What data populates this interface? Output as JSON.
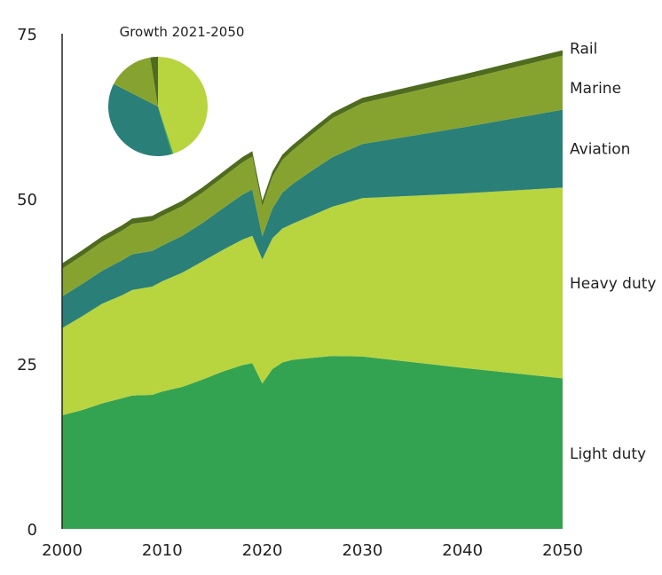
{
  "chart_data": {
    "type": "area",
    "stacked": true,
    "x": [
      2000,
      2002,
      2004,
      2006,
      2007,
      2009,
      2010,
      2012,
      2014,
      2016,
      2018,
      2019,
      2020,
      2021,
      2022,
      2023,
      2025,
      2027,
      2030,
      2040,
      2050
    ],
    "series": [
      {
        "name": "Light duty",
        "color": "#33a352",
        "values": [
          17.2,
          18.0,
          19.0,
          19.8,
          20.2,
          20.3,
          20.8,
          21.5,
          22.6,
          23.8,
          24.8,
          25.1,
          22.0,
          24.2,
          25.2,
          25.6,
          25.9,
          26.2,
          26.1,
          24.4,
          22.8
        ]
      },
      {
        "name": "Heavy duty",
        "color": "#b8d43f",
        "values": [
          13.2,
          14.2,
          15.1,
          15.6,
          16.0,
          16.4,
          16.7,
          17.3,
          17.9,
          18.4,
          19.0,
          19.3,
          18.8,
          19.8,
          20.3,
          20.6,
          21.6,
          22.6,
          24.0,
          26.4,
          28.9
        ]
      },
      {
        "name": "Aviation",
        "color": "#2a8078",
        "values": [
          4.8,
          4.9,
          5.0,
          5.3,
          5.4,
          5.4,
          5.4,
          5.6,
          5.8,
          6.3,
          6.8,
          7.0,
          3.5,
          4.5,
          5.4,
          6.0,
          6.8,
          7.5,
          8.2,
          10.0,
          11.8
        ]
      },
      {
        "name": "Marine",
        "color": "#87a32f",
        "values": [
          4.2,
          4.3,
          4.4,
          4.5,
          4.6,
          4.5,
          4.5,
          4.5,
          4.6,
          4.7,
          4.9,
          5.0,
          4.6,
          4.8,
          5.0,
          5.1,
          5.5,
          5.9,
          6.2,
          7.2,
          8.2
        ]
      },
      {
        "name": "Rail",
        "color": "#4e6b1e",
        "values": [
          0.8,
          0.8,
          0.8,
          0.8,
          0.8,
          0.8,
          0.8,
          0.8,
          0.8,
          0.8,
          0.8,
          0.8,
          0.8,
          0.8,
          0.8,
          0.8,
          0.8,
          0.8,
          0.8,
          0.8,
          0.8
        ]
      }
    ],
    "xticks": [
      2000,
      2010,
      2020,
      2030,
      2040,
      2050
    ],
    "yticks": [
      0,
      25,
      50,
      75
    ],
    "xlim": [
      2000,
      2050
    ],
    "ylim": [
      0,
      75
    ],
    "xlabel": "",
    "ylabel": "",
    "grid": false,
    "legend": "right-end labels",
    "inset": {
      "type": "pie",
      "title": "Growth 2021-2050",
      "slices": [
        {
          "name": "Heavy duty",
          "value": 45,
          "color": "#b8d43f"
        },
        {
          "name": "Light duty",
          "value": 0.5,
          "color": "#33a352"
        },
        {
          "name": "Aviation",
          "value": 37,
          "color": "#2a8078"
        },
        {
          "name": "Marine",
          "value": 15,
          "color": "#87a32f"
        },
        {
          "name": "Rail",
          "value": 2.5,
          "color": "#4e6b1e"
        }
      ]
    }
  }
}
